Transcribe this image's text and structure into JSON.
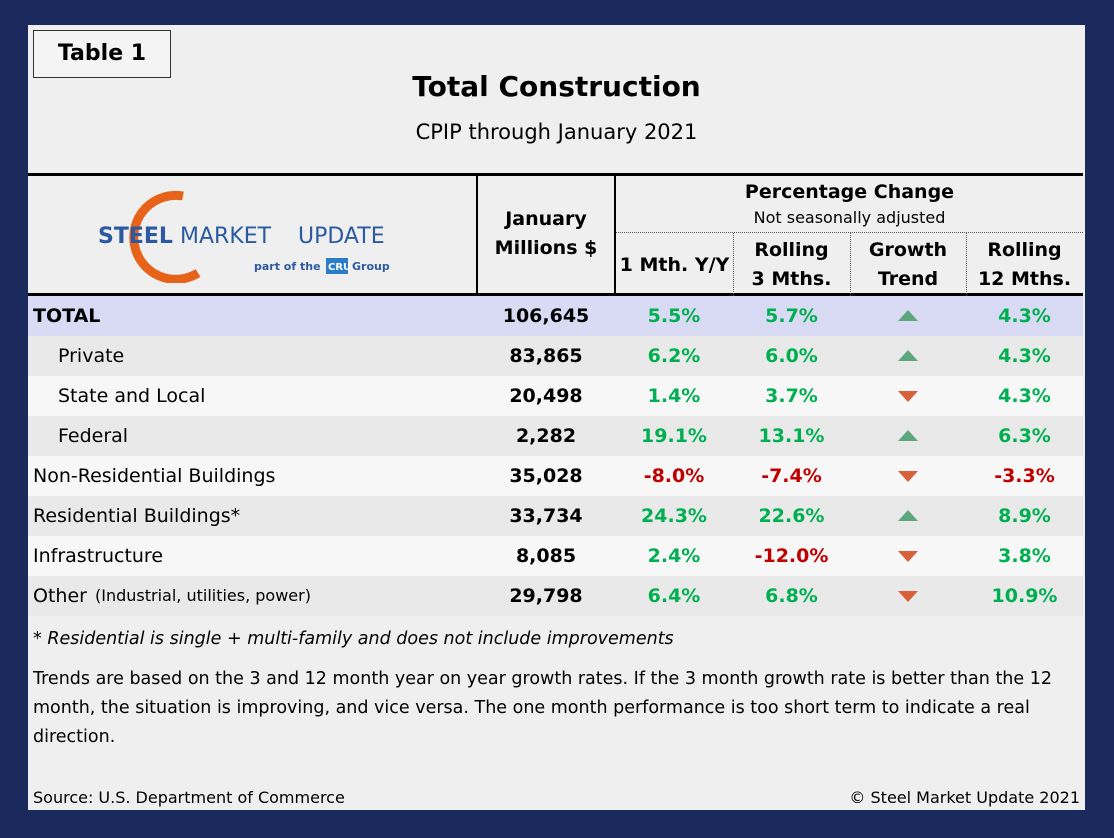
{
  "header": {
    "badge": "Table 1",
    "title": "Total Construction",
    "subtitle": "CPIP through January 2021"
  },
  "logo": {
    "name_a": "STEEL",
    "name_b": "MARKET",
    "name_c": "UPDATE",
    "tagline": "part of the",
    "group_mark": "CRU",
    "group": "Group"
  },
  "table": {
    "columns": {
      "january": "January",
      "millions": "Millions $",
      "pct_change": "Percentage Change",
      "pct_note": "Not seasonally adjusted",
      "one_month": "1 Mth. Y/Y",
      "rolling3_a": "Rolling",
      "rolling3_b": "3 Mths.",
      "trend_a": "Growth",
      "trend_b": "Trend",
      "rolling12_a": "Rolling",
      "rolling12_b": "12 Mths."
    },
    "rows": [
      {
        "label": "TOTAL",
        "january": "106,645",
        "one_month": "5.5%",
        "rolling3": "5.7%",
        "rolling12": "4.3%"
      },
      {
        "label": "Private",
        "january": "83,865",
        "one_month": "6.2%",
        "rolling3": "6.0%",
        "rolling12": "4.3%"
      },
      {
        "label": "State and Local",
        "january": "20,498",
        "one_month": "1.4%",
        "rolling3": "3.7%",
        "rolling12": "4.3%"
      },
      {
        "label": "Federal",
        "january": "2,282",
        "one_month": "19.1%",
        "rolling3": "13.1%",
        "rolling12": "6.3%"
      },
      {
        "label": "Non-Residential Buildings",
        "january": "35,028",
        "one_month": "-8.0%",
        "rolling3": "-7.4%",
        "rolling12": "-3.3%"
      },
      {
        "label": "Residential Buildings*",
        "january": "33,734",
        "one_month": "24.3%",
        "rolling3": "22.6%",
        "rolling12": "8.9%"
      },
      {
        "label": "Infrastructure",
        "january": "8,085",
        "one_month": "2.4%",
        "rolling3": "-12.0%",
        "rolling12": "3.8%"
      },
      {
        "label": "Other",
        "note": "(Industrial, utilities, power)",
        "january": "29,798",
        "one_month": "6.4%",
        "rolling3": "6.8%",
        "rolling12": "10.9%"
      }
    ]
  },
  "footnote": "* Residential is single + multi-family and does not include improvements",
  "explanation": "Trends are based on the 3 and 12 month year on year growth rates. If the 3 month growth rate is better than the 12 month, the situation is improving, and vice versa. The one month performance is too short term to indicate a real direction.",
  "source": "Source: U.S. Department of Commerce",
  "copyright": "© Steel Market Update 2021"
}
